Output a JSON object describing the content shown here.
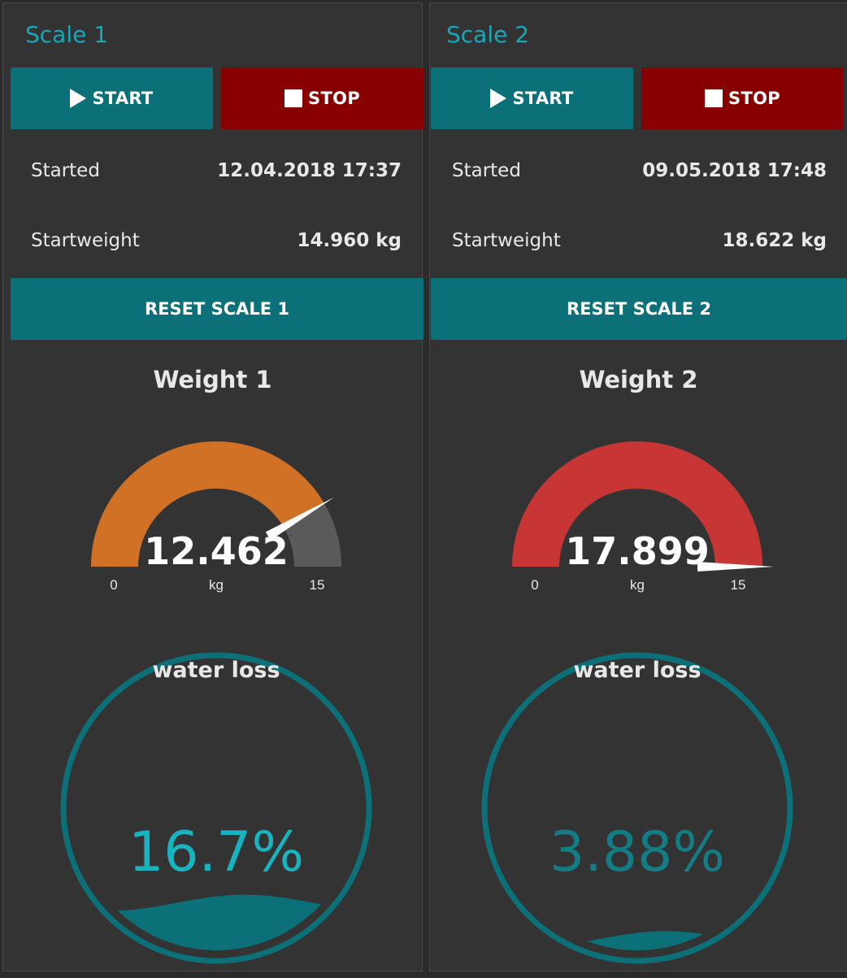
{
  "scales": [
    {
      "title": "Scale 1",
      "start_label": "START",
      "stop_label": "STOP",
      "started_label": "Started",
      "started_value": "12.04.2018 17:37",
      "startweight_label": "Startweight",
      "startweight_value": "14.960 kg",
      "reset_label": "RESET SCALE 1",
      "gauge": {
        "title": "Weight 1",
        "value": 12.462,
        "value_text": "12.462",
        "min": 0,
        "max": 15,
        "min_label": "0",
        "max_label": "15",
        "unit": "kg",
        "color": "#d07125"
      },
      "water_loss": {
        "title": "water loss",
        "value": 16.7,
        "value_text": "16.7%",
        "fill_fraction": 0.167,
        "color": "#0b7078",
        "text_color": "#17b3c0"
      }
    },
    {
      "title": "Scale 2",
      "start_label": "START",
      "stop_label": "STOP",
      "started_label": "Started",
      "started_value": "09.05.2018 17:48",
      "startweight_label": "Startweight",
      "startweight_value": "18.622 kg",
      "reset_label": "RESET SCALE 2",
      "gauge": {
        "title": "Weight 2",
        "value": 17.899,
        "value_text": "17.899",
        "min": 0,
        "max": 15,
        "min_label": "0",
        "max_label": "15",
        "unit": "kg",
        "color": "#c73535"
      },
      "water_loss": {
        "title": "water loss",
        "value": 3.88,
        "value_text": "3.88%",
        "fill_fraction": 0.0388,
        "color": "#0b7078",
        "text_color": "#137c84"
      }
    }
  ],
  "colors": {
    "accent": "#17a7b8",
    "button_teal": "#0b7078",
    "button_red": "#880000",
    "panel_bg": "#333333",
    "gauge_track": "#5a5a5a"
  },
  "icons": {
    "start": "play-icon",
    "stop": "stop-icon"
  }
}
